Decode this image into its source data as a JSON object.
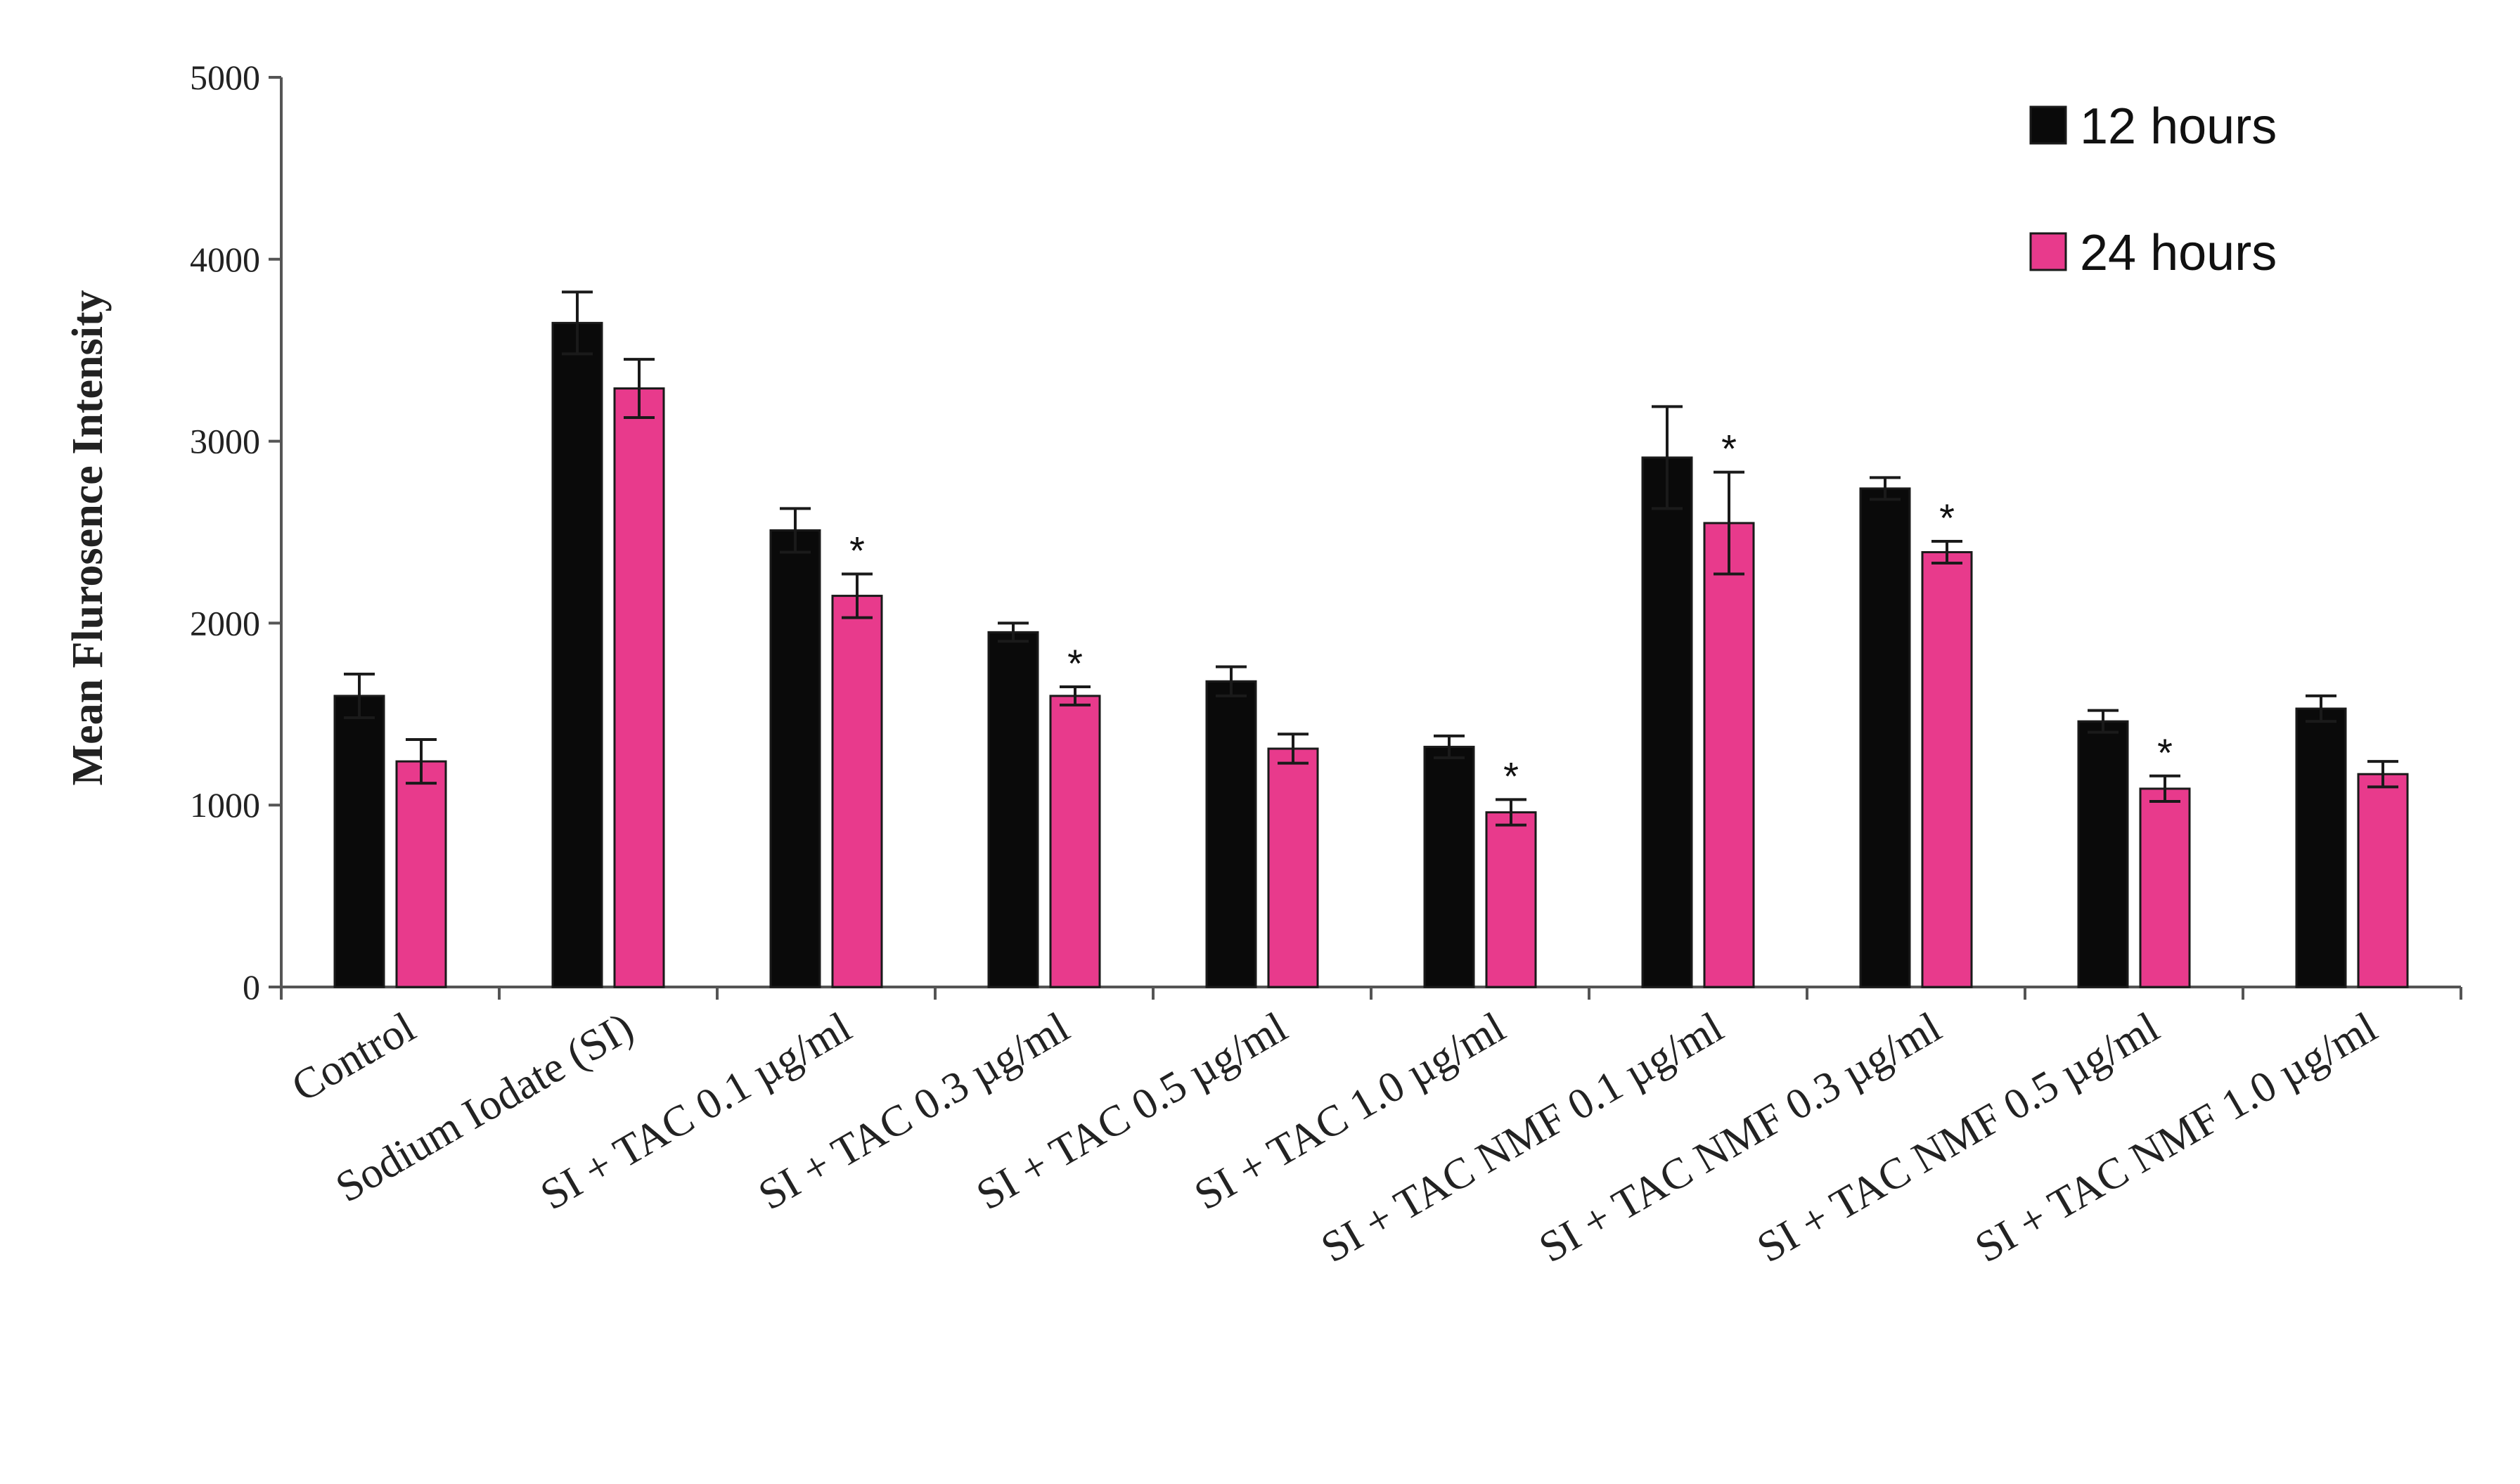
{
  "chart_data": {
    "type": "bar",
    "title": "",
    "xlabel": "",
    "ylabel": "Mean Flurosence Intensity",
    "ylim": [
      0,
      5000
    ],
    "yticks": [
      "0",
      "1000",
      "2000",
      "3000",
      "4000",
      "5000"
    ],
    "legend_position": "top-right",
    "grid": false,
    "categories": [
      "Control",
      "Sodium Iodate (SI)",
      "SI + TAC 0.1 µg/ml",
      "SI + TAC 0.3 µg/ml",
      "SI + TAC 0.5 µg/ml",
      "SI + TAC 1.0 µg/ml",
      "SI + TAC NMF 0.1 µg/ml",
      "SI + TAC NMF 0.3 µg/ml",
      "SI + TAC NMF 0.5 µg/ml",
      "SI + TAC NMF 1.0 µg/ml"
    ],
    "series": [
      {
        "name": "12 hours",
        "color": "#0a0a0a",
        "values": [
          1600,
          3650,
          2510,
          1950,
          1680,
          1320,
          2910,
          2740,
          1460,
          1530
        ],
        "errors": [
          120,
          170,
          120,
          50,
          80,
          60,
          280,
          60,
          60,
          70
        ]
      },
      {
        "name": "24 hours",
        "color": "#e83a8c",
        "values": [
          1240,
          3290,
          2150,
          1600,
          1310,
          960,
          2550,
          2390,
          1090,
          1170
        ],
        "errors": [
          120,
          160,
          120,
          50,
          80,
          70,
          280,
          60,
          70,
          70
        ]
      }
    ],
    "annotations": [
      {
        "category_index": 2,
        "text": "*"
      },
      {
        "category_index": 3,
        "text": "*"
      },
      {
        "category_index": 5,
        "text": "*"
      },
      {
        "category_index": 6,
        "text": "*"
      },
      {
        "category_index": 7,
        "text": "*"
      },
      {
        "category_index": 8,
        "text": "*"
      }
    ]
  }
}
